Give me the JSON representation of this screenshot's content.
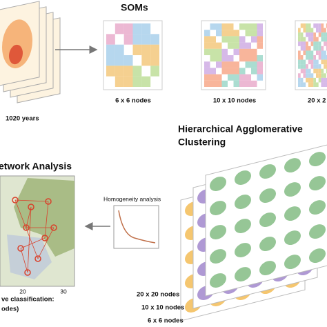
{
  "top_left": {
    "caption": "1020 years"
  },
  "soms": {
    "title": "SOMs",
    "panels": [
      "6 x 6 nodes",
      "10 x 10 nodes",
      "20 x 2"
    ]
  },
  "clustering": {
    "title_line1": "Hierarchical Agglomerative",
    "title_line2": "Clustering",
    "labels": [
      "20 x 20 nodes",
      "10 x 10 nodes",
      "6 x 6 nodes"
    ]
  },
  "homogeneity": {
    "label": "Homogeneity analysis"
  },
  "network": {
    "title": "etwork Analysis",
    "axis_labels": [
      "20",
      "30"
    ],
    "caption_line1": "ve classification:",
    "caption_line2": "odes)"
  }
}
